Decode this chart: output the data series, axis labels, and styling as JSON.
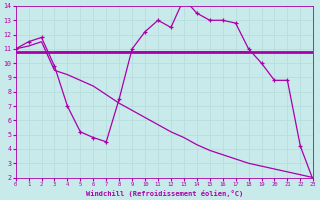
{
  "xlabel": "Windchill (Refroidissement éolien,°C)",
  "bg_color": "#c8eaea",
  "grid_color": "#aadddd",
  "line_color": "#aa00aa",
  "xlim": [
    0,
    23
  ],
  "ylim": [
    2,
    14
  ],
  "yticks": [
    2,
    3,
    4,
    5,
    6,
    7,
    8,
    9,
    10,
    11,
    12,
    13,
    14
  ],
  "xticks": [
    0,
    1,
    2,
    3,
    4,
    5,
    6,
    7,
    8,
    9,
    10,
    11,
    12,
    13,
    14,
    15,
    16,
    17,
    18,
    19,
    20,
    21,
    22,
    23
  ],
  "curve1_x": [
    0,
    1,
    2,
    3,
    4,
    5,
    6,
    7,
    8,
    9,
    10,
    11,
    12,
    13,
    14,
    15,
    16,
    17,
    18,
    19,
    20,
    21,
    22,
    23
  ],
  "curve1_y": [
    11.0,
    11.5,
    11.8,
    9.8,
    7.0,
    5.2,
    4.8,
    4.5,
    7.5,
    11.0,
    12.2,
    13.0,
    12.5,
    14.5,
    13.5,
    13.0,
    13.0,
    12.8,
    11.0,
    10.0,
    8.8,
    8.8,
    4.2,
    1.8
  ],
  "hline1_x": [
    0,
    23
  ],
  "hline1_y": [
    10.8,
    10.8
  ],
  "hline2_x": [
    3,
    18
  ],
  "hline2_y": [
    10.8,
    10.8
  ],
  "diag_x": [
    0,
    1,
    2,
    3,
    4,
    5,
    6,
    7,
    8,
    9,
    10,
    11,
    12,
    13,
    14,
    15,
    16,
    17,
    18,
    19,
    20,
    21,
    22,
    23
  ],
  "diag_y": [
    11.0,
    11.2,
    11.5,
    9.5,
    9.2,
    8.8,
    8.4,
    7.8,
    7.2,
    6.7,
    6.2,
    5.7,
    5.2,
    4.8,
    4.3,
    3.9,
    3.6,
    3.3,
    3.0,
    2.8,
    2.6,
    2.4,
    2.2,
    2.0
  ]
}
